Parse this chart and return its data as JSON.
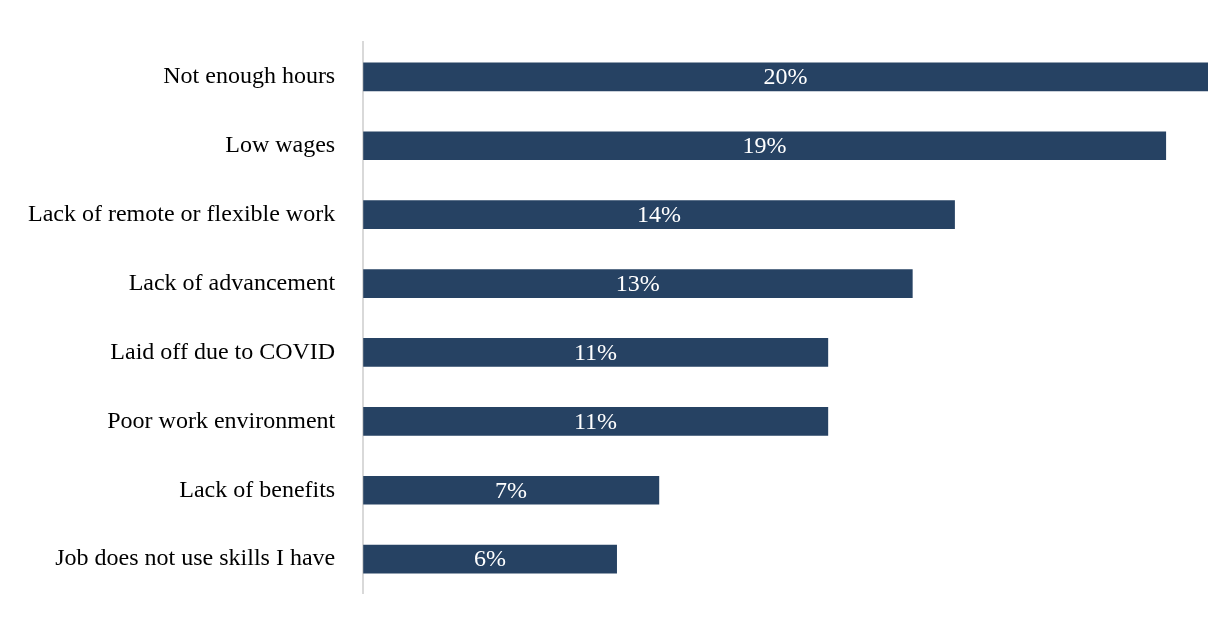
{
  "chart_data": {
    "type": "bar",
    "orientation": "horizontal",
    "categories": [
      "Not enough hours",
      "Low wages",
      "Lack of remote or flexible work",
      "Lack of advancement",
      "Laid off due to COVID",
      "Poor work environment",
      "Lack of benefits",
      "Job does not use skills I have"
    ],
    "values": [
      20,
      19,
      14,
      13,
      11,
      11,
      7,
      6
    ],
    "value_labels": [
      "20%",
      "19%",
      "14%",
      "13%",
      "11%",
      "11%",
      "7%",
      "6%"
    ],
    "color": "#264263",
    "xlim": [
      0,
      20
    ]
  }
}
